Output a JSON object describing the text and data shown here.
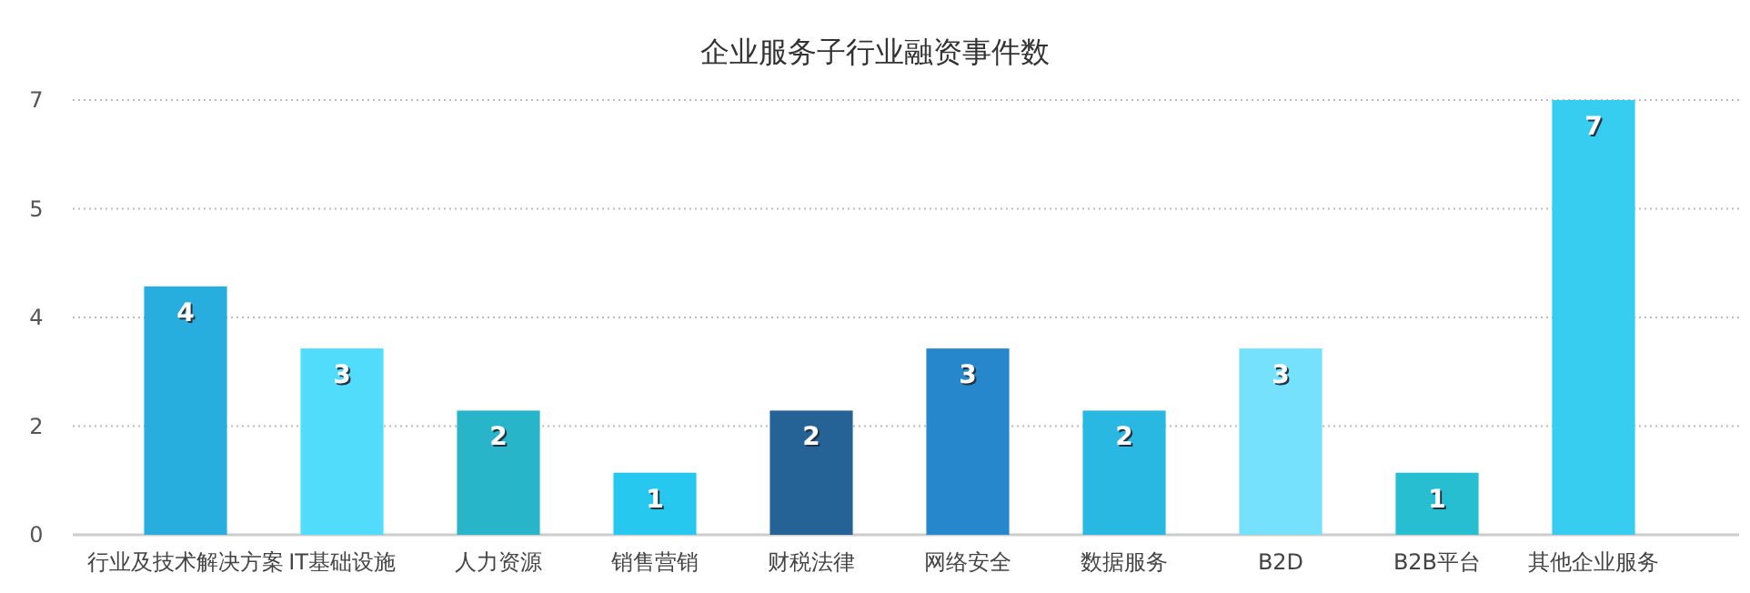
{
  "chart_data": {
    "type": "bar",
    "title": "企业服务子行业融资事件数",
    "categories": [
      "行业及技术解决方案",
      "IT基础设施",
      "人力资源",
      "销售营销",
      "财税法律",
      "网络安全",
      "数据服务",
      "B2D",
      "B2B平台",
      "其他企业服务"
    ],
    "values": [
      4,
      3,
      2,
      1,
      2,
      3,
      2,
      3,
      1,
      7
    ],
    "colors": [
      "#27aedf",
      "#52dcfb",
      "#28b4c9",
      "#26c8ef",
      "#256396",
      "#2787cc",
      "#29b8e2",
      "#76e1fc",
      "#27bed2",
      "#36cdf0"
    ],
    "ylim": [
      0,
      7
    ],
    "yticks": [
      0,
      {
        "value": 1.75,
        "label": "2"
      },
      {
        "value": 3.5,
        "label": "4"
      },
      {
        "value": 5.25,
        "label": "5"
      },
      7
    ],
    "grid": "y",
    "data_labels": true
  }
}
